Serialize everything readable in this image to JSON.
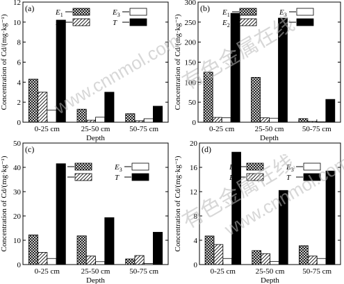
{
  "watermark": {
    "line1": "有色金属在线",
    "line2": "www.cnnmol.com"
  },
  "legend_keys": [
    "E1",
    "E2",
    "E3",
    "T"
  ],
  "series_styles": {
    "E1": {
      "fill": "crosshatch",
      "color": "#000000"
    },
    "E2": {
      "fill": "diagonal-light",
      "color": "#000000"
    },
    "E3": {
      "fill": "white",
      "color": "#000000"
    },
    "T": {
      "fill": "solid",
      "color": "#000000"
    }
  },
  "chart_data": [
    {
      "type": "bar",
      "panel_label": "(a)",
      "ylabel": "Concentration of Cd/(mg·kg⁻¹)",
      "xlabel": "Depth",
      "categories": [
        "0-25 cm",
        "25-50 cm",
        "50-75 cm"
      ],
      "ylim": [
        0,
        12
      ],
      "yticks": [
        0,
        2,
        4,
        6,
        8,
        10,
        12
      ],
      "legend_placement": "top-center",
      "series": [
        {
          "name": "E1",
          "values": [
            4.3,
            1.3,
            0.85
          ]
        },
        {
          "name": "E2",
          "values": [
            3.0,
            0.2,
            0.15
          ]
        },
        {
          "name": "E3",
          "values": [
            1.2,
            0.5,
            0.35
          ]
        },
        {
          "name": "T",
          "values": [
            10.2,
            3.0,
            1.6
          ]
        }
      ]
    },
    {
      "type": "bar",
      "panel_label": "(b)",
      "ylabel": "Concentration of Cd/(mg·kg⁻¹)",
      "xlabel": "Depth",
      "categories": [
        "0-25 cm",
        "25-50 cm",
        "50-75 cm"
      ],
      "ylim": [
        0,
        300
      ],
      "yticks": [
        0,
        50,
        100,
        150,
        200,
        250,
        300
      ],
      "legend_placement": "top-center",
      "series": [
        {
          "name": "E1",
          "values": [
            125,
            112,
            9
          ]
        },
        {
          "name": "E2",
          "values": [
            12,
            11,
            2
          ]
        },
        {
          "name": "E3",
          "values": [
            11,
            10,
            1
          ]
        },
        {
          "name": "T",
          "values": [
            272,
            260,
            57
          ]
        }
      ]
    },
    {
      "type": "bar",
      "panel_label": "(c)",
      "ylabel": "Concentration of Cd/(mg·kg⁻¹)",
      "xlabel": "Depth",
      "categories": [
        "0-25 cm",
        "25-50 cm",
        "50-75 cm"
      ],
      "ylim": [
        0,
        50
      ],
      "yticks": [
        0,
        10,
        20,
        30,
        40,
        50
      ],
      "legend_placement": "top-center",
      "series": [
        {
          "name": "E1",
          "values": [
            12.2,
            11.8,
            2.3
          ]
        },
        {
          "name": "E2",
          "values": [
            5.0,
            3.5,
            3.7
          ]
        },
        {
          "name": "E3",
          "values": [
            2.5,
            1.2,
            0.4
          ]
        },
        {
          "name": "T",
          "values": [
            41.5,
            19.3,
            13.3
          ]
        }
      ]
    },
    {
      "type": "bar",
      "panel_label": "(d)",
      "ylabel": "Concentration of Cd/(mg·kg⁻¹)",
      "xlabel": "Depth",
      "categories": [
        "0-25 cm",
        "25-50 cm",
        "50-75 cm"
      ],
      "ylim": [
        0,
        20
      ],
      "yticks": [
        0,
        4,
        8,
        12,
        16,
        20
      ],
      "legend_placement": "top-center",
      "series": [
        {
          "name": "E1",
          "values": [
            4.7,
            2.3,
            3.1
          ]
        },
        {
          "name": "E2",
          "values": [
            3.3,
            1.8,
            1.4
          ]
        },
        {
          "name": "E3",
          "values": [
            1.0,
            0.5,
            1.0
          ]
        },
        {
          "name": "T",
          "values": [
            18.5,
            12.2,
            15.4
          ]
        }
      ]
    }
  ]
}
